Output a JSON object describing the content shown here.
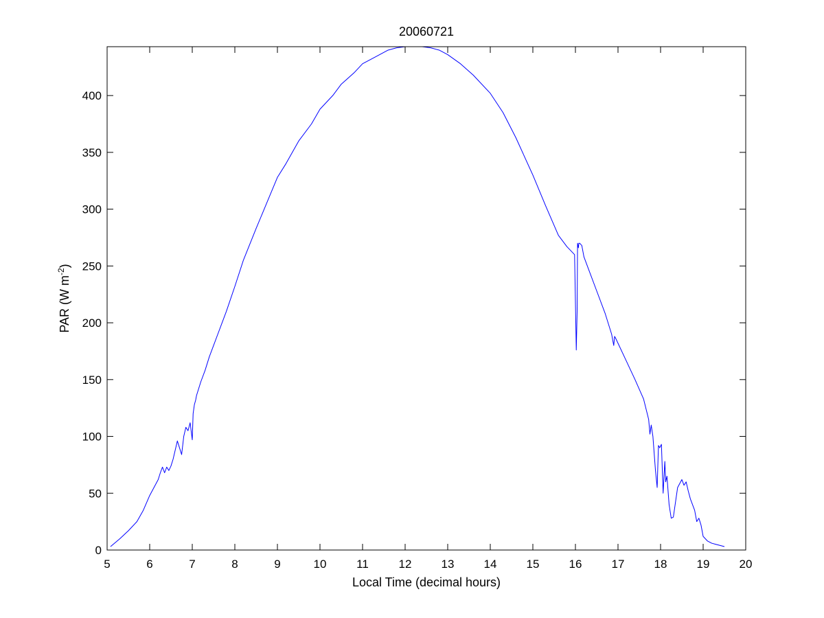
{
  "chart_data": {
    "type": "line",
    "title": "20060721",
    "xlabel": "Local Time (decimal hours)",
    "ylabel": {
      "main": "PAR (W m",
      "superscript": "-2",
      "close": ")"
    },
    "xlim": [
      5,
      20
    ],
    "ylim": [
      0,
      443
    ],
    "xticks": [
      5,
      6,
      7,
      8,
      9,
      10,
      11,
      12,
      13,
      14,
      15,
      16,
      17,
      18,
      19,
      20
    ],
    "yticks": [
      0,
      50,
      100,
      150,
      200,
      250,
      300,
      350,
      400
    ],
    "grid": false,
    "line_color": "#0000ff",
    "series": [
      {
        "x": [
          5.08,
          5.3,
          5.5,
          5.7,
          5.85,
          6.0,
          6.1,
          6.2,
          6.25,
          6.3,
          6.35,
          6.4,
          6.45,
          6.5,
          6.55,
          6.6,
          6.65,
          6.7,
          6.75,
          6.8,
          6.85,
          6.9,
          6.95,
          7.0,
          7.02,
          7.05,
          7.08,
          7.1,
          7.2,
          7.3,
          7.4,
          7.5,
          7.6,
          7.7,
          7.8,
          8.0,
          8.2,
          8.5,
          8.8,
          9.0,
          9.2,
          9.5,
          9.8,
          10.0,
          10.3,
          10.5,
          10.8,
          11.0,
          11.3,
          11.6,
          11.8,
          12.0,
          12.2,
          12.4,
          12.6,
          12.8,
          13.0,
          13.3,
          13.6,
          14.0,
          14.3,
          14.6,
          15.0,
          15.3,
          15.6,
          15.8,
          15.98,
          16.02,
          16.04,
          16.05,
          16.06,
          16.07,
          16.08,
          16.1,
          16.15,
          16.2,
          16.3,
          16.5,
          16.7,
          16.85,
          16.9,
          16.92,
          16.95,
          17.0,
          17.2,
          17.4,
          17.6,
          17.72,
          17.75,
          17.78,
          17.82,
          17.88,
          17.92,
          17.95,
          17.98,
          18.02,
          18.06,
          18.1,
          18.12,
          18.15,
          18.2,
          18.25,
          18.3,
          18.4,
          18.5,
          18.55,
          18.6,
          18.65,
          18.7,
          18.8,
          18.85,
          18.9,
          18.95,
          19.0,
          19.1,
          19.2,
          19.3,
          19.4,
          19.5
        ],
        "y": [
          3,
          10,
          17,
          25,
          35,
          48,
          55,
          62,
          68,
          73,
          68,
          73,
          70,
          74,
          80,
          88,
          96,
          90,
          84,
          100,
          108,
          105,
          112,
          97,
          120,
          128,
          132,
          136,
          148,
          158,
          170,
          180,
          190,
          200,
          210,
          232,
          255,
          283,
          310,
          328,
          340,
          360,
          375,
          388,
          400,
          410,
          420,
          428,
          434,
          440,
          442,
          443,
          443,
          443,
          442,
          440,
          436,
          428,
          418,
          402,
          385,
          363,
          330,
          303,
          277,
          267,
          260,
          176,
          210,
          270,
          268,
          266,
          270,
          270,
          268,
          258,
          248,
          228,
          208,
          190,
          180,
          188,
          186,
          182,
          166,
          150,
          133,
          115,
          102,
          110,
          100,
          70,
          55,
          92,
          90,
          93,
          50,
          78,
          60,
          65,
          40,
          28,
          29,
          55,
          62,
          57,
          60,
          52,
          45,
          35,
          25,
          28,
          22,
          12,
          8,
          6,
          5,
          4,
          3
        ]
      }
    ]
  }
}
